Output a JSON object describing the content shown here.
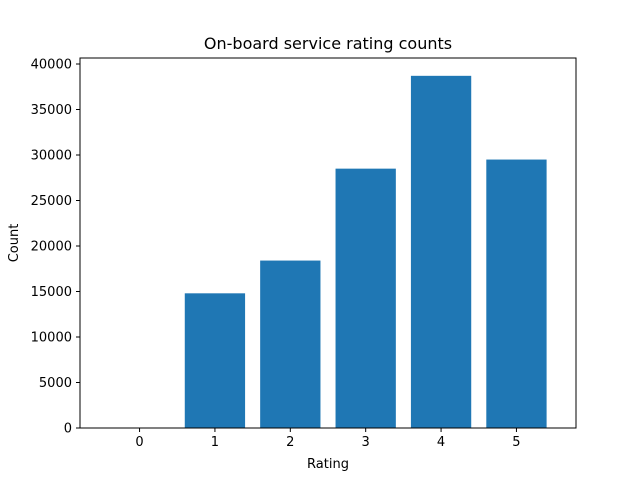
{
  "chart_data": {
    "type": "bar",
    "title": "On-board service rating counts",
    "xlabel": "Rating",
    "ylabel": "Count",
    "categories": [
      "0",
      "1",
      "2",
      "3",
      "4",
      "5"
    ],
    "values": [
      5,
      14800,
      18400,
      28500,
      38700,
      29500
    ],
    "ylim": [
      0,
      40000
    ],
    "yticks": [
      "0",
      "5000",
      "10000",
      "15000",
      "20000",
      "25000",
      "30000",
      "35000",
      "40000"
    ],
    "bar_color": "#1f77b4",
    "grid": false,
    "legend": "none"
  }
}
